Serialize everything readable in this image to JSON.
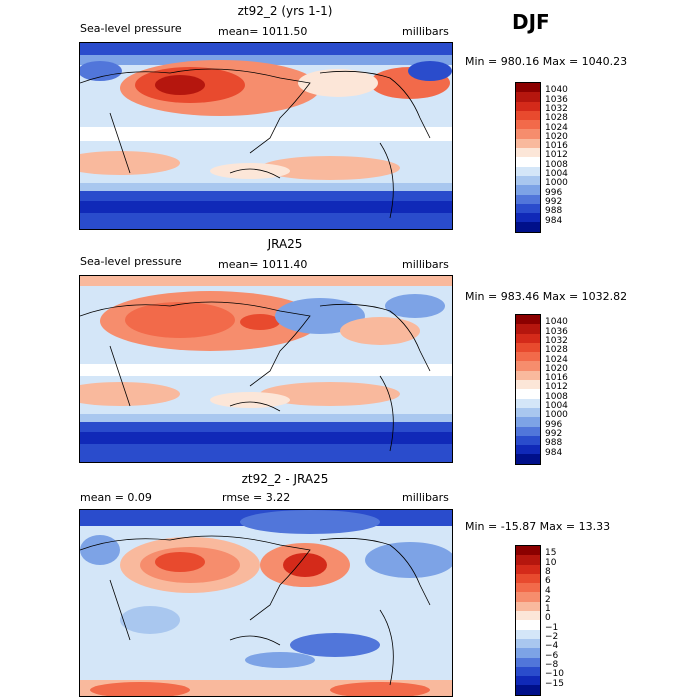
{
  "season": "DJF",
  "panels": [
    {
      "title": "zt92_2 (yrs 1-1)",
      "left_label": "Sea-level pressure",
      "mean_label": "mean= 1011.50",
      "units": "millibars",
      "range_label": "Min = 980.16 Max = 1040.23",
      "legend": {
        "ticks": [
          "1040",
          "1036",
          "1032",
          "1028",
          "1024",
          "1020",
          "1016",
          "1012",
          "1008",
          "1004",
          "1000",
          "996",
          "992",
          "988",
          "984"
        ],
        "colors": [
          "#8b0000",
          "#b5160e",
          "#d42a1a",
          "#e84a2e",
          "#f26a4a",
          "#f68d6d",
          "#f9b99d",
          "#fce6d8",
          "#ffffff",
          "#d4e6f8",
          "#a9c7ef",
          "#7da3e6",
          "#5176da",
          "#2a4ccc",
          "#1029b8",
          "#00108a"
        ]
      }
    },
    {
      "title": "JRA25",
      "left_label": "Sea-level pressure",
      "mean_label": "mean= 1011.40",
      "units": "millibars",
      "range_label": "Min = 983.46 Max = 1032.82",
      "legend": {
        "ticks": [
          "1040",
          "1036",
          "1032",
          "1028",
          "1024",
          "1020",
          "1016",
          "1012",
          "1008",
          "1004",
          "1000",
          "996",
          "992",
          "988",
          "984"
        ],
        "colors": [
          "#8b0000",
          "#b5160e",
          "#d42a1a",
          "#e84a2e",
          "#f26a4a",
          "#f68d6d",
          "#f9b99d",
          "#fce6d8",
          "#ffffff",
          "#d4e6f8",
          "#a9c7ef",
          "#7da3e6",
          "#5176da",
          "#2a4ccc",
          "#1029b8",
          "#00108a"
        ]
      }
    },
    {
      "title": "zt92_2 - JRA25",
      "mean_label": "mean =    0.09",
      "rmse_label": "rmse =    3.22",
      "units": "millibars",
      "range_label": "Min = -15.87 Max =   13.33",
      "legend": {
        "ticks": [
          "15",
          "10",
          "8",
          "6",
          "4",
          "2",
          "1",
          "0",
          "−1",
          "−2",
          "−4",
          "−6",
          "−8",
          "−10",
          "−15"
        ],
        "colors": [
          "#8b0000",
          "#b5160e",
          "#d42a1a",
          "#e84a2e",
          "#f26a4a",
          "#f68d6d",
          "#f9b99d",
          "#fce6d8",
          "#ffffff",
          "#d4e6f8",
          "#a9c7ef",
          "#7da3e6",
          "#5176da",
          "#2a4ccc",
          "#1029b8",
          "#00108a"
        ]
      }
    }
  ]
}
